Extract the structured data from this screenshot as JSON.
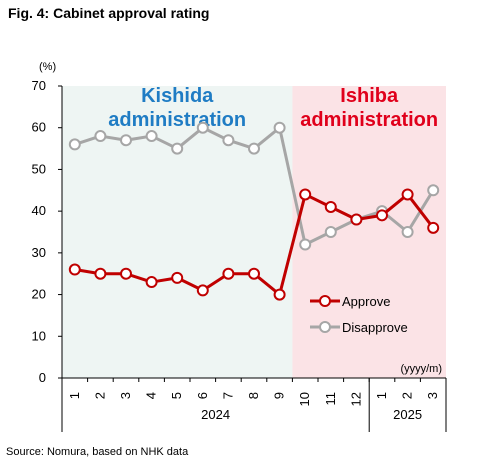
{
  "figure": {
    "title": "Fig. 4: Cabinet approval rating",
    "source": "Source: Nomura, based on NHK data"
  },
  "chart_data": {
    "type": "line",
    "y_unit": "(%)",
    "x_unit": "(yyyy/m)",
    "ylim": [
      0,
      70
    ],
    "yticks": [
      0,
      10,
      20,
      30,
      40,
      50,
      60,
      70
    ],
    "categories": [
      "1",
      "2",
      "3",
      "4",
      "5",
      "6",
      "7",
      "8",
      "9",
      "10",
      "11",
      "12",
      "1",
      "2",
      "3"
    ],
    "year_groups": [
      {
        "label": "2024",
        "start": 0,
        "end": 11
      },
      {
        "label": "2025",
        "start": 12,
        "end": 14
      }
    ],
    "series": [
      {
        "name": "Approve",
        "color": "#c00000",
        "values": [
          26,
          25,
          25,
          23,
          24,
          21,
          25,
          25,
          20,
          44,
          41,
          38,
          39,
          44,
          36
        ]
      },
      {
        "name": "Disapprove",
        "color": "#a6a6a6",
        "values": [
          56,
          58,
          57,
          58,
          55,
          60,
          57,
          55,
          60,
          32,
          35,
          38,
          40,
          35,
          45
        ]
      }
    ],
    "regions": [
      {
        "label_line1": "Kishida",
        "label_line2": "administration",
        "start": 0,
        "end": 8,
        "fill": "#eef5f3",
        "text_color": "#1f7cc4"
      },
      {
        "label_line1": "Ishiba",
        "label_line2": "administration",
        "start": 9,
        "end": 14,
        "fill": "#fbe3e6",
        "text_color": "#e0001b"
      }
    ],
    "grid": false,
    "legend_position": "bottom-right"
  }
}
